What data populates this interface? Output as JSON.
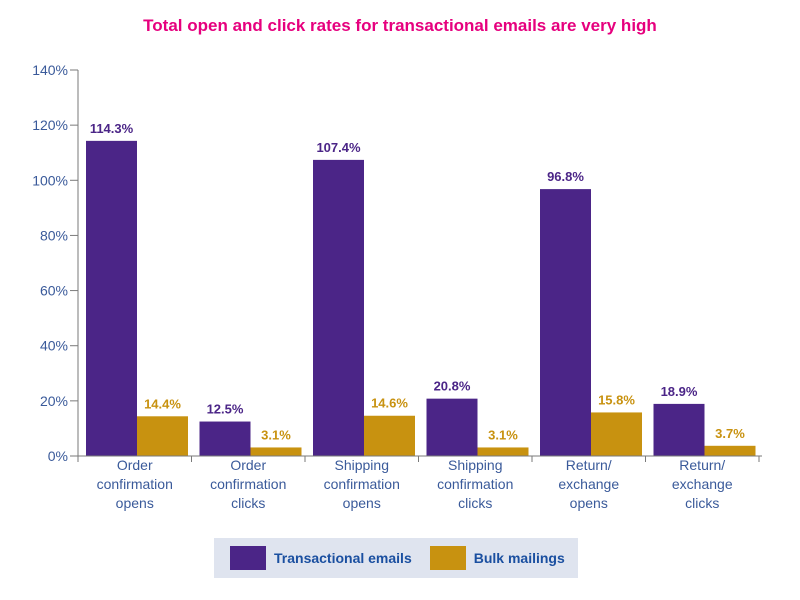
{
  "title": "Total open and click rates for transactional emails are very high",
  "colors": {
    "title": "#e6007e",
    "transactional": "#4b2587",
    "bulk": "#c89210",
    "axis_text": "#3a5a9a"
  },
  "chart_data": {
    "type": "bar",
    "title": "Total open and click rates for transactional emails are very high",
    "categories": [
      [
        "Order",
        "confirmation",
        "opens"
      ],
      [
        "Order",
        "confirmation",
        "clicks"
      ],
      [
        "Shipping",
        "confirmation",
        "opens"
      ],
      [
        "Shipping",
        "confirmation",
        "clicks"
      ],
      [
        "Return/",
        "exchange",
        "opens"
      ],
      [
        "Return/",
        "exchange",
        "clicks"
      ]
    ],
    "series": [
      {
        "name": "Transactional emails",
        "values": [
          114.3,
          12.5,
          107.4,
          20.8,
          96.8,
          18.9
        ],
        "labels": [
          "114.3%",
          "12.5%",
          "107.4%",
          "20.8%",
          "96.8%",
          "18.9%"
        ]
      },
      {
        "name": "Bulk mailings",
        "values": [
          14.4,
          3.1,
          14.6,
          3.1,
          15.8,
          3.7
        ],
        "labels": [
          "14.4%",
          "3.1%",
          "14.6%",
          "3.1%",
          "15.8%",
          "3.7%"
        ]
      }
    ],
    "ylim": [
      0,
      140
    ],
    "yticks": [
      0,
      20,
      40,
      60,
      80,
      100,
      120,
      140
    ],
    "ytick_labels": [
      "0%",
      "20%",
      "40%",
      "60%",
      "80%",
      "100%",
      "120%",
      "140%"
    ],
    "grid": false,
    "legend_position": "bottom"
  },
  "legend": {
    "items": [
      {
        "label": "Transactional emails"
      },
      {
        "label": "Bulk mailings"
      }
    ]
  }
}
